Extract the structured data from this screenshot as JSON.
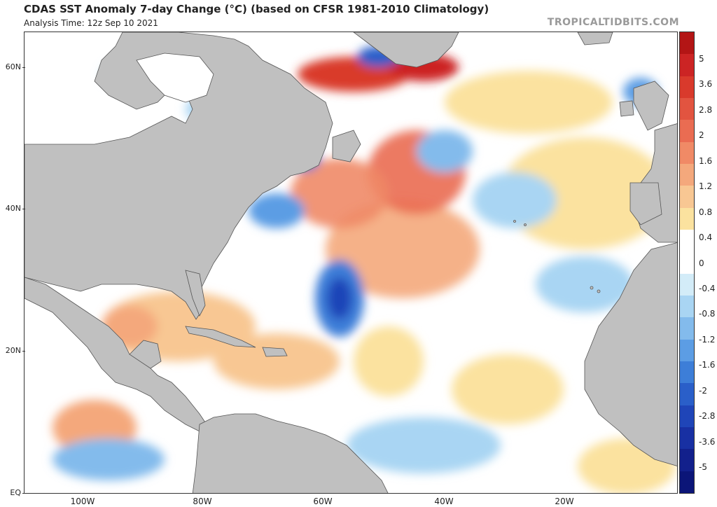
{
  "header": {
    "title": "CDAS SST Anomaly 7-day Change (°C) (based on CFSR 1981-2010 Climatology)",
    "analysis_time": "Analysis Time: 12z Sep 10 2021",
    "brand": "TROPICALTIDBITS.COM"
  },
  "axes": {
    "lat_labels": [
      "60N",
      "40N",
      "20N",
      "EQ"
    ],
    "lon_labels": [
      "100W",
      "80W",
      "60W",
      "40W",
      "20W"
    ]
  },
  "colorbar": {
    "tick_labels": [
      "5",
      "3.6",
      "2.8",
      "2",
      "1.6",
      "1.2",
      "0.8",
      "0.4",
      "0",
      "-0.4",
      "-0.8",
      "-1.2",
      "-1.6",
      "-2",
      "-2.8",
      "-3.6",
      "-5"
    ],
    "colors": [
      "#b31515",
      "#cc2424",
      "#d93a2c",
      "#e25440",
      "#ea6c52",
      "#f08a66",
      "#f4a87c",
      "#f8c793",
      "#fbe29f",
      "#ffffff",
      "#ffffff",
      "#d3ecf8",
      "#a9d5f3",
      "#83bbec",
      "#5c9de4",
      "#3d7ed8",
      "#2a5fc9",
      "#1f45b8",
      "#1830a3",
      "#12208c",
      "#0b1578"
    ]
  },
  "map_colors": {
    "land": "#c0c0c0",
    "border": "#555555",
    "ocean": "#ffffff"
  }
}
